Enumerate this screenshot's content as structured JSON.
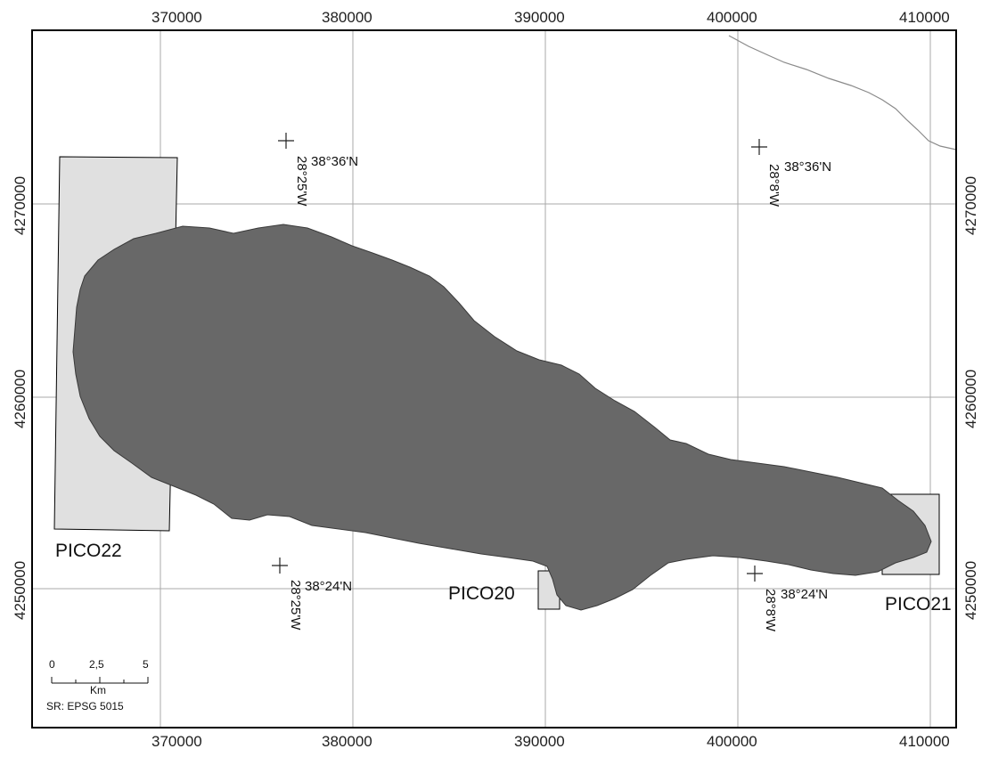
{
  "map": {
    "x_ticks": [
      "370000",
      "380000",
      "390000",
      "400000",
      "410000"
    ],
    "y_ticks": [
      "4270000",
      "4260000",
      "4250000"
    ],
    "colors": {
      "island": "#686868",
      "area_fill": "#e0e0e0",
      "grid": "#a8a8a8",
      "frame": "#000000"
    },
    "areas": [
      {
        "name": "PICO22"
      },
      {
        "name": "PICO20"
      },
      {
        "name": "PICO21"
      }
    ],
    "coordinate_markers": [
      {
        "lat": "38°36'N",
        "lon": "28°25'W"
      },
      {
        "lat": "38°36'N",
        "lon": "28°8'W"
      },
      {
        "lat": "38°24'N",
        "lon": "28°25'W"
      },
      {
        "lat": "38°24'N",
        "lon": "28°8'W"
      }
    ],
    "scale_bar": {
      "ticks": [
        "0",
        "2,5",
        "5"
      ],
      "unit": "Km",
      "reference": "SR: EPSG 5015"
    }
  }
}
